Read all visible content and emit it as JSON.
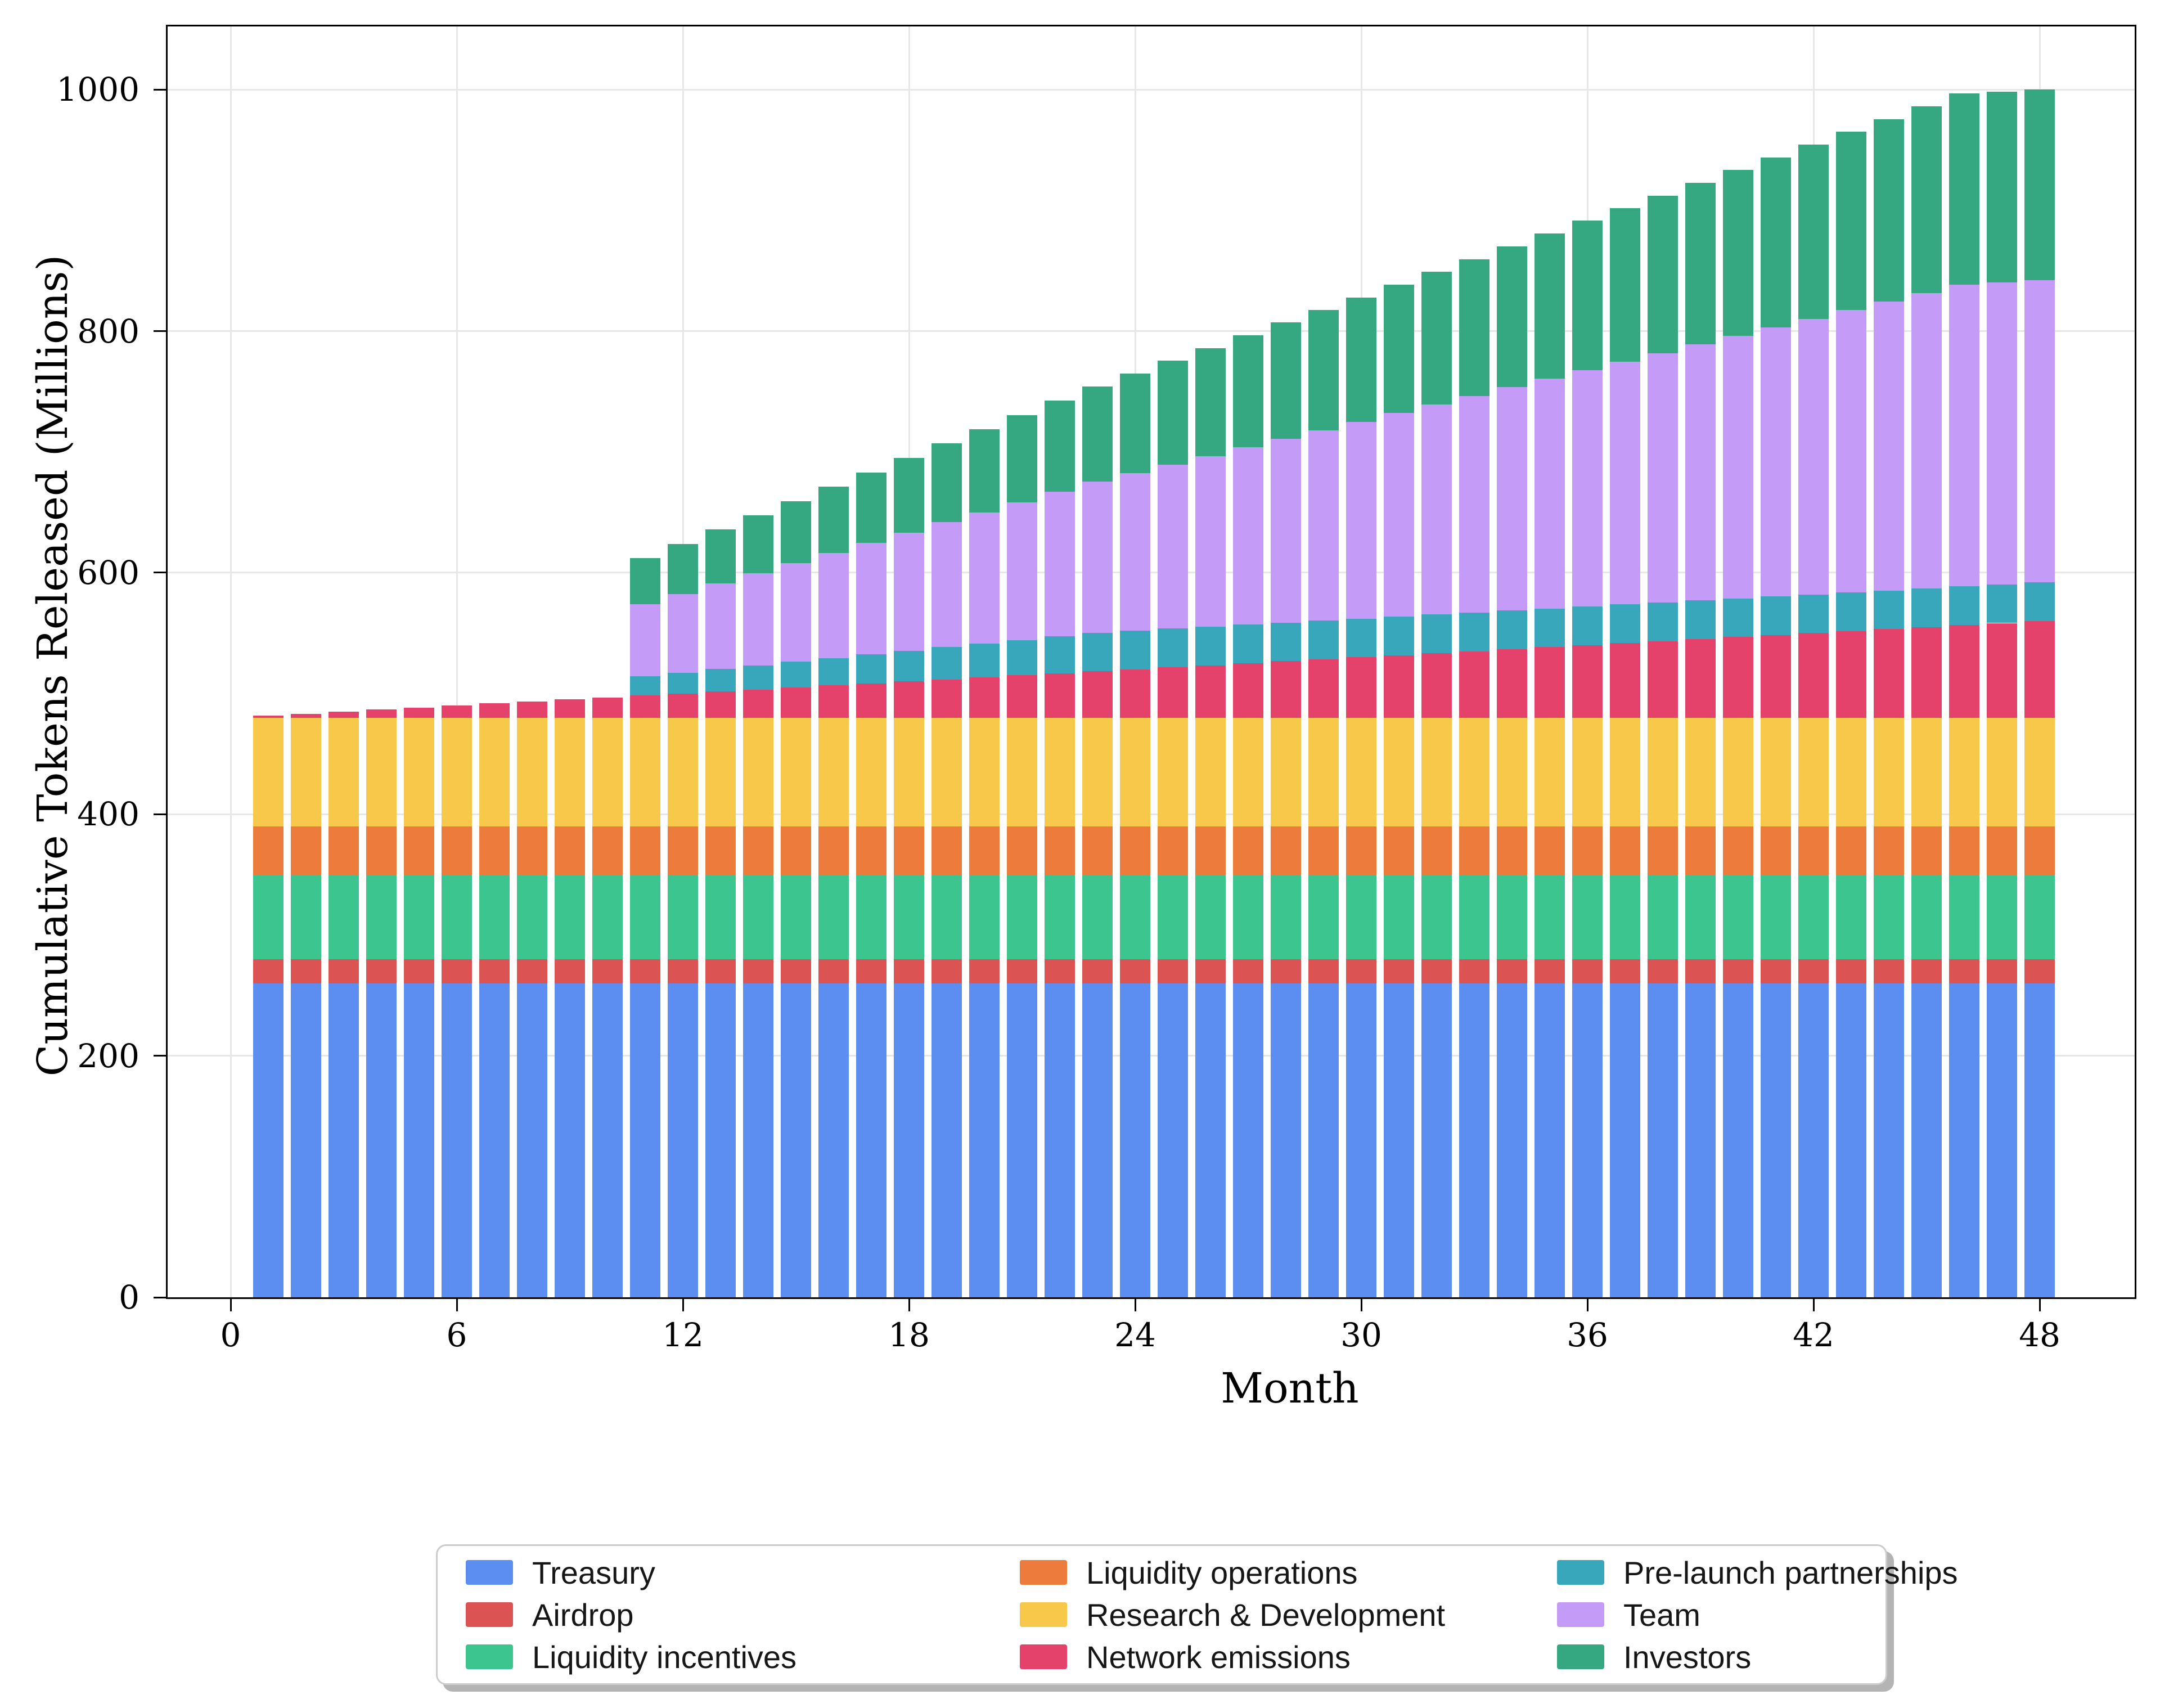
{
  "chart_data": {
    "type": "bar",
    "stacked": true,
    "title": "",
    "xlabel": "Month",
    "ylabel": "Cumulative Tokens Released (Millions)",
    "x": [
      1,
      2,
      3,
      4,
      5,
      6,
      7,
      8,
      9,
      10,
      11,
      12,
      13,
      14,
      15,
      16,
      17,
      18,
      19,
      20,
      21,
      22,
      23,
      24,
      25,
      26,
      27,
      28,
      29,
      30,
      31,
      32,
      33,
      34,
      35,
      36,
      37,
      38,
      39,
      40,
      41,
      42,
      43,
      44,
      45,
      46,
      47,
      48
    ],
    "xticks": [
      0,
      6,
      12,
      18,
      24,
      30,
      36,
      42,
      48
    ],
    "yticks": [
      0,
      200,
      400,
      600,
      800,
      1000
    ],
    "xlim": [
      -1.67,
      50.55
    ],
    "ylim": [
      0,
      1052.3
    ],
    "grid": true,
    "total_supply_millions": 1000,
    "series": [
      {
        "name": "Treasury",
        "color": "#5B8EF0",
        "values": [
          260,
          260,
          260,
          260,
          260,
          260,
          260,
          260,
          260,
          260,
          260,
          260,
          260,
          260,
          260,
          260,
          260,
          260,
          260,
          260,
          260,
          260,
          260,
          260,
          260,
          260,
          260,
          260,
          260,
          260,
          260,
          260,
          260,
          260,
          260,
          260,
          260,
          260,
          260,
          260,
          260,
          260,
          260,
          260,
          260,
          260,
          260,
          260
        ]
      },
      {
        "name": "Airdrop",
        "color": "#DC5353",
        "values": [
          20,
          20,
          20,
          20,
          20,
          20,
          20,
          20,
          20,
          20,
          20,
          20,
          20,
          20,
          20,
          20,
          20,
          20,
          20,
          20,
          20,
          20,
          20,
          20,
          20,
          20,
          20,
          20,
          20,
          20,
          20,
          20,
          20,
          20,
          20,
          20,
          20,
          20,
          20,
          20,
          20,
          20,
          20,
          20,
          20,
          20,
          20,
          20
        ]
      },
      {
        "name": "Liquidity incentives",
        "color": "#3DC58F",
        "values": [
          70,
          70,
          70,
          70,
          70,
          70,
          70,
          70,
          70,
          70,
          70,
          70,
          70,
          70,
          70,
          70,
          70,
          70,
          70,
          70,
          70,
          70,
          70,
          70,
          70,
          70,
          70,
          70,
          70,
          70,
          70,
          70,
          70,
          70,
          70,
          70,
          70,
          70,
          70,
          70,
          70,
          70,
          70,
          70,
          70,
          70,
          70,
          70
        ]
      },
      {
        "name": "Liquidity operations",
        "color": "#EC7B3C",
        "values": [
          40,
          40,
          40,
          40,
          40,
          40,
          40,
          40,
          40,
          40,
          40,
          40,
          40,
          40,
          40,
          40,
          40,
          40,
          40,
          40,
          40,
          40,
          40,
          40,
          40,
          40,
          40,
          40,
          40,
          40,
          40,
          40,
          40,
          40,
          40,
          40,
          40,
          40,
          40,
          40,
          40,
          40,
          40,
          40,
          40,
          40,
          40,
          40
        ]
      },
      {
        "name": "Research & Development",
        "color": "#F7C84A",
        "values": [
          90,
          90,
          90,
          90,
          90,
          90,
          90,
          90,
          90,
          90,
          90,
          90,
          90,
          90,
          90,
          90,
          90,
          90,
          90,
          90,
          90,
          90,
          90,
          90,
          90,
          90,
          90,
          90,
          90,
          90,
          90,
          90,
          90,
          90,
          90,
          90,
          90,
          90,
          90,
          90,
          90,
          90,
          90,
          90,
          90,
          90,
          90,
          90
        ]
      },
      {
        "name": "Network emissions",
        "color": "#E4426B",
        "values": [
          1.7,
          3.3,
          5,
          6.7,
          8.3,
          10,
          11.7,
          13.3,
          15,
          16.7,
          18.3,
          20,
          21.7,
          23.3,
          25,
          26.7,
          28.3,
          30,
          31.7,
          33.3,
          35,
          36.7,
          38.3,
          40,
          41.7,
          43.3,
          45,
          46.7,
          48.3,
          50,
          51.7,
          53.3,
          55,
          56.7,
          58.3,
          60,
          61.7,
          63.3,
          65,
          66.7,
          68.3,
          70,
          71.7,
          73.3,
          75,
          76.7,
          78.3,
          80
        ]
      },
      {
        "name": "Pre-launch partnerships",
        "color": "#38A7BC",
        "values": [
          0,
          0,
          0,
          0,
          0,
          0,
          0,
          0,
          0,
          0,
          16,
          17.3,
          18.7,
          20,
          21.3,
          22.7,
          24,
          25.3,
          26.7,
          28,
          29.3,
          30.7,
          32,
          32,
          32,
          32,
          32,
          32,
          32,
          32,
          32,
          32,
          32,
          32,
          32,
          32,
          32,
          32,
          32,
          32,
          32,
          32,
          32,
          32,
          32,
          32,
          32,
          32
        ]
      },
      {
        "name": "Team",
        "color": "#C49BF7",
        "values": [
          0,
          0,
          0,
          0,
          0,
          0,
          0,
          0,
          0,
          0,
          59.8,
          65.2,
          70.7,
          76.1,
          81.5,
          87,
          92.4,
          97.8,
          103.3,
          108.7,
          114.1,
          119.6,
          125,
          130.4,
          135.9,
          141.3,
          146.7,
          152.2,
          157.6,
          163,
          168.5,
          173.9,
          179.3,
          184.8,
          190.2,
          195.7,
          201.1,
          206.5,
          212,
          217.4,
          222.8,
          228.3,
          233.7,
          239.1,
          244.6,
          250,
          250,
          250
        ]
      },
      {
        "name": "Investors",
        "color": "#35A881",
        "values": [
          0,
          0,
          0,
          0,
          0,
          0,
          0,
          0,
          0,
          0,
          37.8,
          41.2,
          44.7,
          48.1,
          51.5,
          55,
          58.4,
          61.8,
          65.3,
          68.7,
          72.1,
          75.6,
          79,
          82.4,
          85.9,
          89.3,
          92.7,
          96.2,
          99.6,
          103,
          106.5,
          109.9,
          113.3,
          116.8,
          120.2,
          123.7,
          127.1,
          130.5,
          134,
          137.4,
          140.8,
          144.3,
          147.7,
          151.1,
          154.6,
          158,
          158,
          158
        ]
      }
    ],
    "legend": {
      "position": "bottom",
      "columns": [
        [
          "Treasury",
          "Airdrop",
          "Liquidity incentives"
        ],
        [
          "Liquidity operations",
          "Research & Development",
          "Network emissions"
        ],
        [
          "Pre-launch partnerships",
          "Team",
          "Investors"
        ]
      ]
    }
  }
}
